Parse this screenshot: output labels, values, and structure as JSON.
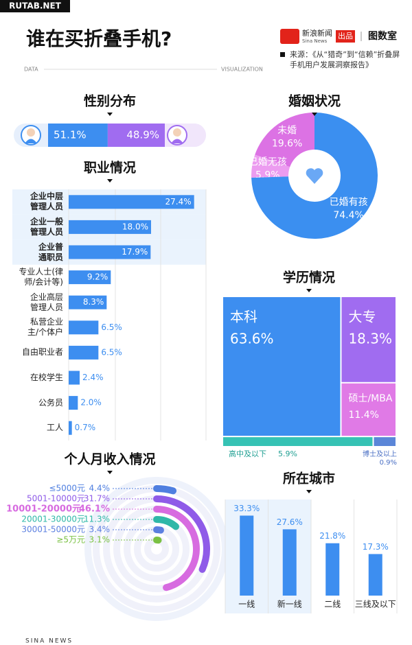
{
  "watermark": "RUTAB.NET",
  "header": {
    "title": "谁在买折叠手机?",
    "brand": "新浪新闻",
    "brand_en": "Sina News",
    "produced": "出品",
    "studio": "图数室",
    "source": "来源：《从“猎奇”到“信赖”折叠屏手机用户发展洞察报告》",
    "left_tag": "DATA",
    "right_tag": "VISUALIZATION"
  },
  "footer": "SINA NEWS",
  "chart_data": [
    {
      "type": "split-bar",
      "title": "性别分布",
      "values": [
        51.1,
        48.9
      ],
      "value_labels": [
        "51.1%",
        "48.9%"
      ],
      "colors": [
        "#3d8ef0",
        "#a06cf0"
      ]
    },
    {
      "type": "donut",
      "title": "婚姻状况",
      "categories": [
        "未婚",
        "已婚无孩",
        "已婚有孩"
      ],
      "values": [
        19.6,
        5.9,
        74.4
      ],
      "value_labels": [
        "19.6%",
        "5.9%",
        "74.4%"
      ],
      "colors": [
        "#dc72e4",
        "#ec9cf0",
        "#3b8ff0"
      ]
    },
    {
      "type": "hbar",
      "title": "职业情况",
      "categories": [
        "企业中层\n管理人员",
        "企业一般\n管理人员",
        "企业普\n通职员",
        "专业人士(律\n师/会计等)",
        "企业高层\n管理人员",
        "私营企业\n主/个体户",
        "自由职业者",
        "在校学生",
        "公务员",
        "工人"
      ],
      "values": [
        27.4,
        18.0,
        17.9,
        9.2,
        8.3,
        6.5,
        6.5,
        2.4,
        2.0,
        0.7
      ],
      "value_labels": [
        "27.4%",
        "18.0%",
        "17.9%",
        "9.2%",
        "8.3%",
        "6.5%",
        "6.5%",
        "2.4%",
        "2.0%",
        "0.7%"
      ],
      "xlim": [
        0,
        30
      ],
      "color": "#3d8ef0",
      "highlight": [
        0,
        1,
        2
      ]
    },
    {
      "type": "treemap",
      "title": "学历情况",
      "categories": [
        "本科",
        "大专",
        "硕士/MBA",
        "高中及以下",
        "博士及以上"
      ],
      "values": [
        63.6,
        18.3,
        11.4,
        5.9,
        0.9
      ],
      "value_labels": [
        "63.6%",
        "18.3%",
        "11.4%",
        "5.9%",
        "0.9%"
      ],
      "colors": [
        "#3d8ef0",
        "#a06cf0",
        "#e07ae6",
        "#36c2b4",
        "#5b86d8"
      ]
    },
    {
      "type": "radial",
      "title": "个人月收入情况",
      "categories": [
        "≤5000元",
        "5001-10000元",
        "10001-20000元",
        "20001-30000元",
        "30001-50000元",
        "≥5万元"
      ],
      "values": [
        4.4,
        31.7,
        46.1,
        11.3,
        3.4,
        3.1
      ],
      "value_labels": [
        "4.4%",
        "31.7%",
        "46.1%",
        "11.3%",
        "3.4%",
        "3.1%"
      ],
      "colors": [
        "#4f7fe0",
        "#8f5be8",
        "#d76be0",
        "#2fb8a8",
        "#5b7fe0",
        "#7ac143"
      ]
    },
    {
      "type": "bar",
      "title": "所在城市",
      "categories": [
        "一线",
        "新一线",
        "二线",
        "三线及以下"
      ],
      "values": [
        33.3,
        27.6,
        21.8,
        17.3
      ],
      "value_labels": [
        "33.3%",
        "27.6%",
        "21.8%",
        "17.3%"
      ],
      "ylim": [
        0,
        40
      ],
      "color": "#3d8ef0",
      "highlight": [
        0,
        1
      ]
    }
  ]
}
